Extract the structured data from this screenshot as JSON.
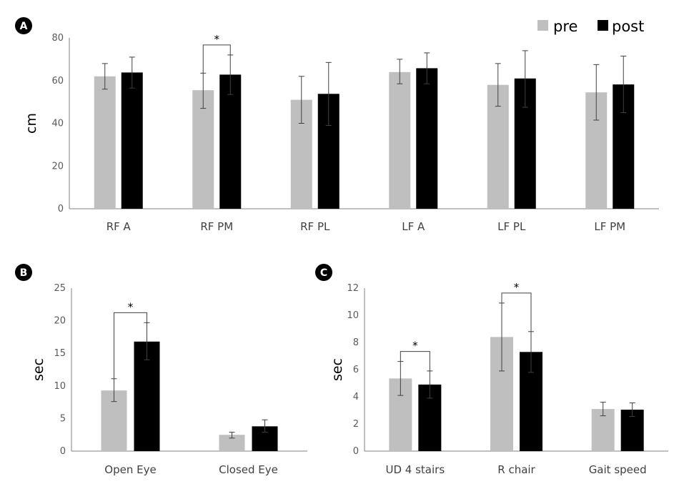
{
  "colors": {
    "pre": "#bfbfbf",
    "post": "#000000",
    "axis": "#808080",
    "err": "#404040"
  },
  "chart_data": [
    {
      "panel": "A",
      "type": "bar",
      "categories": [
        "RF  A",
        "RF  PM",
        "RF  PL",
        "LF  A",
        "LF  PL",
        "LF  PM"
      ],
      "series": [
        {
          "name": "pre",
          "values": [
            62,
            55.5,
            51,
            64,
            58,
            54.5
          ],
          "err_low": [
            56,
            47,
            40,
            58.5,
            48,
            41.5
          ],
          "err_high": [
            68,
            63.5,
            62,
            70,
            68,
            67.5
          ]
        },
        {
          "name": "post",
          "values": [
            63.8,
            62.8,
            53.8,
            65.8,
            61,
            58.2
          ],
          "err_low": [
            56.5,
            53.5,
            39,
            58.5,
            47.5,
            45
          ],
          "err_high": [
            71,
            72,
            68.5,
            73,
            74,
            71.5
          ]
        }
      ],
      "ylabel": "cm",
      "ylim": [
        0,
        80
      ],
      "yticks": [
        "0",
        "20",
        "40",
        "60",
        "80"
      ],
      "significance": [
        {
          "category_index": 1,
          "label": "*"
        }
      ],
      "legend": {
        "placement": "top-right",
        "labels": [
          "pre",
          "post"
        ]
      }
    },
    {
      "panel": "B",
      "type": "bar",
      "categories": [
        "Open Eye",
        "Closed Eye"
      ],
      "series": [
        {
          "name": "pre",
          "values": [
            9.3,
            2.5
          ],
          "err_low": [
            7.6,
            2
          ],
          "err_high": [
            11.1,
            2.9
          ]
        },
        {
          "name": "post",
          "values": [
            16.8,
            3.8
          ],
          "err_low": [
            14,
            2.9
          ],
          "err_high": [
            19.7,
            4.8
          ]
        }
      ],
      "ylabel": "sec",
      "ylim": [
        0,
        25
      ],
      "yticks": [
        "0",
        "5",
        "10",
        "15",
        "20",
        "25"
      ],
      "significance": [
        {
          "category_index": 0,
          "label": "*"
        }
      ]
    },
    {
      "panel": "C",
      "type": "bar",
      "categories": [
        "UD 4 stairs",
        "R chair",
        "Gait speed"
      ],
      "series": [
        {
          "name": "pre",
          "values": [
            5.35,
            8.4,
            3.1
          ],
          "err_low": [
            4.1,
            5.9,
            2.6
          ],
          "err_high": [
            6.6,
            10.9,
            3.6
          ]
        },
        {
          "name": "post",
          "values": [
            4.9,
            7.3,
            3.05
          ],
          "err_low": [
            3.9,
            5.8,
            2.55
          ],
          "err_high": [
            5.9,
            8.8,
            3.55
          ]
        }
      ],
      "ylabel": "sec",
      "ylim": [
        0,
        12
      ],
      "yticks": [
        "0",
        "2",
        "4",
        "6",
        "8",
        "10",
        "12"
      ],
      "significance": [
        {
          "category_index": 0,
          "label": "*"
        },
        {
          "category_index": 1,
          "label": "*"
        }
      ]
    }
  ]
}
